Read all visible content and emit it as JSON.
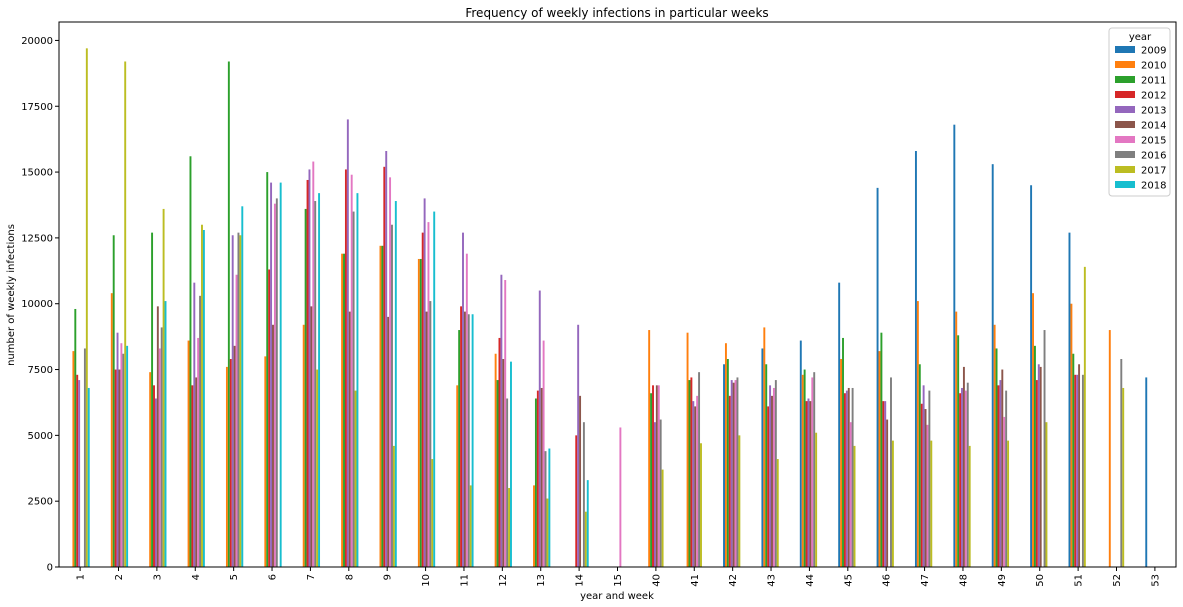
{
  "chart_data": {
    "type": "bar",
    "title": "Frequency of weekly infections in particular weeks",
    "xlabel": "year and week",
    "ylabel": "number of weekly infections",
    "ylim": [
      0,
      20700
    ],
    "yticks": [
      0,
      2500,
      5000,
      7500,
      10000,
      12500,
      15000,
      17500,
      20000
    ],
    "ytick_labels": [
      "0",
      "2500",
      "5000",
      "7500",
      "10000",
      "12500",
      "15000",
      "17500",
      "20000"
    ],
    "grid": false,
    "legend_title": "year",
    "legend_position": "top-right",
    "categories": [
      "1",
      "2",
      "3",
      "4",
      "5",
      "6",
      "7",
      "8",
      "9",
      "10",
      "11",
      "12",
      "13",
      "14",
      "15",
      "40",
      "41",
      "42",
      "43",
      "44",
      "45",
      "46",
      "47",
      "48",
      "49",
      "50",
      "51",
      "52",
      "53"
    ],
    "series": [
      {
        "name": "2009",
        "color": "#1f77b4",
        "values": [
          0,
          0,
          0,
          0,
          0,
          0,
          0,
          0,
          0,
          0,
          0,
          0,
          0,
          0,
          0,
          0,
          0,
          7700,
          8300,
          8600,
          10800,
          14400,
          15800,
          16800,
          15300,
          14500,
          12700,
          0,
          7200
        ]
      },
      {
        "name": "2010",
        "color": "#ff7f0e",
        "values": [
          8200,
          10400,
          7400,
          8600,
          7600,
          8000,
          9200,
          11900,
          12200,
          11700,
          6900,
          8100,
          3100,
          0,
          0,
          9000,
          8900,
          8500,
          9100,
          7300,
          7900,
          8200,
          10100,
          9700,
          9200,
          10400,
          10000,
          9000,
          0
        ]
      },
      {
        "name": "2011",
        "color": "#2ca02c",
        "values": [
          9800,
          12600,
          12700,
          15600,
          19200,
          15000,
          13600,
          11900,
          12200,
          11700,
          9000,
          7100,
          6400,
          0,
          0,
          6600,
          7100,
          7900,
          7700,
          7500,
          8700,
          8900,
          7700,
          8800,
          8300,
          8400,
          8100,
          0,
          0
        ]
      },
      {
        "name": "2012",
        "color": "#d62728",
        "values": [
          7300,
          7500,
          6900,
          6900,
          7900,
          11300,
          14700,
          15100,
          15200,
          12700,
          9900,
          8700,
          6700,
          5000,
          0,
          6900,
          7200,
          6500,
          6100,
          6300,
          6600,
          6300,
          6200,
          6600,
          6900,
          7100,
          7300,
          0,
          0
        ]
      },
      {
        "name": "2013",
        "color": "#9467bd",
        "values": [
          7100,
          8900,
          6400,
          10800,
          12600,
          14600,
          15100,
          17000,
          15800,
          14000,
          12700,
          11100,
          10500,
          9200,
          0,
          5500,
          6300,
          7100,
          6900,
          6400,
          6700,
          6300,
          6900,
          6800,
          7100,
          7700,
          7300,
          0,
          0
        ]
      },
      {
        "name": "2014",
        "color": "#8c564b",
        "values": [
          0,
          7500,
          9900,
          7200,
          8400,
          9200,
          9900,
          9700,
          9500,
          9700,
          9700,
          7900,
          6800,
          6500,
          0,
          6900,
          6100,
          7000,
          6500,
          6300,
          6800,
          5600,
          6000,
          7600,
          7500,
          7600,
          7700,
          0,
          0
        ]
      },
      {
        "name": "2015",
        "color": "#e377c2",
        "values": [
          0,
          8500,
          8300,
          8700,
          11100,
          13800,
          15400,
          14900,
          14800,
          13100,
          11900,
          10900,
          8600,
          0,
          5300,
          6900,
          6500,
          7100,
          6800,
          7200,
          5500,
          0,
          5400,
          6700,
          5700,
          0,
          0,
          0,
          0
        ]
      },
      {
        "name": "2016",
        "color": "#7f7f7f",
        "values": [
          8300,
          8100,
          9100,
          10300,
          12700,
          14000,
          13900,
          13500,
          13000,
          10100,
          9600,
          6400,
          4400,
          5500,
          0,
          5600,
          7400,
          7200,
          7100,
          7400,
          6800,
          7200,
          6700,
          7000,
          6700,
          9000,
          7300,
          7900,
          0
        ]
      },
      {
        "name": "2017",
        "color": "#bcbd22",
        "values": [
          19700,
          19200,
          13600,
          13000,
          12600,
          0,
          7500,
          6700,
          4600,
          4100,
          3100,
          3000,
          2600,
          2100,
          0,
          3700,
          4700,
          5000,
          4100,
          5100,
          4600,
          4800,
          4800,
          4600,
          4800,
          5500,
          11400,
          6800,
          0
        ]
      },
      {
        "name": "2018",
        "color": "#17becf",
        "values": [
          6800,
          8400,
          10100,
          12800,
          13700,
          14600,
          14200,
          14200,
          13900,
          13500,
          9600,
          7800,
          4500,
          3300,
          0,
          0,
          0,
          0,
          0,
          0,
          0,
          0,
          0,
          0,
          0,
          0,
          0,
          0,
          0
        ]
      }
    ]
  }
}
